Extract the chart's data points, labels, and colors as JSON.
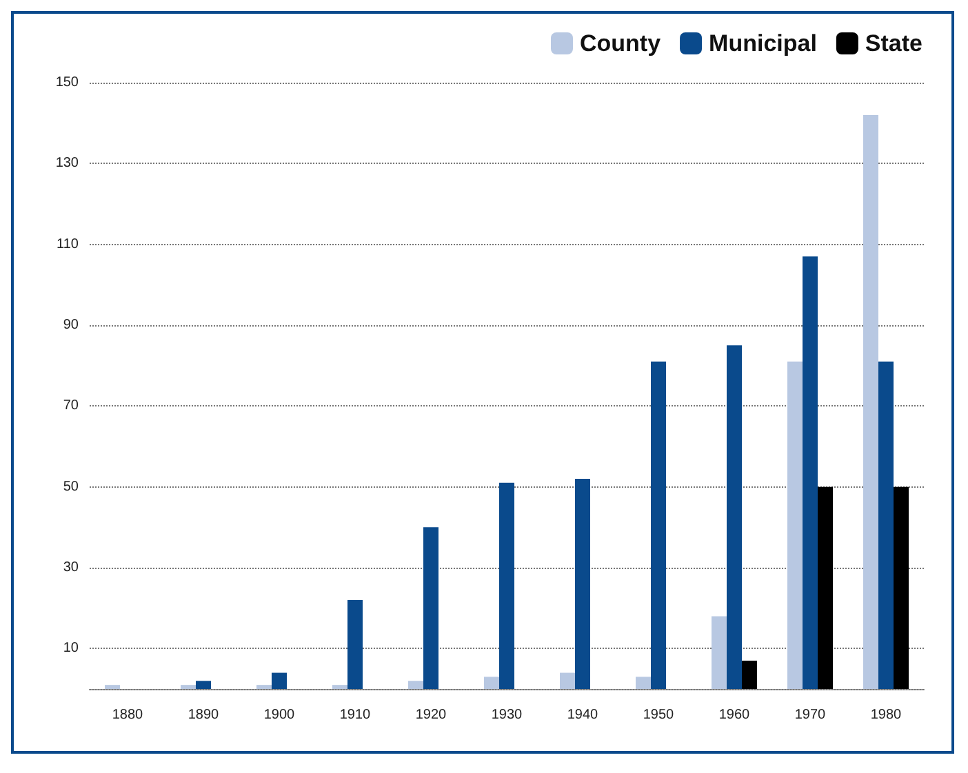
{
  "chart_data": {
    "type": "bar",
    "categories": [
      "1880",
      "1890",
      "1900",
      "1910",
      "1920",
      "1930",
      "1940",
      "1950",
      "1960",
      "1970",
      "1980"
    ],
    "series": [
      {
        "name": "County",
        "color": "#b8c8e2",
        "values": [
          1,
          1,
          1,
          1,
          2,
          3,
          4,
          3,
          18,
          81,
          142
        ]
      },
      {
        "name": "Municipal",
        "color": "#0a4a8c",
        "values": [
          0,
          2,
          4,
          22,
          40,
          51,
          52,
          81,
          85,
          107,
          81
        ]
      },
      {
        "name": "State",
        "color": "#000000",
        "values": [
          0,
          0,
          0,
          0,
          0,
          0,
          0,
          0,
          7,
          50,
          50
        ]
      }
    ],
    "ylim": [
      0,
      150
    ],
    "yticks": [
      10,
      30,
      50,
      70,
      90,
      110,
      130,
      150
    ],
    "grid": "y",
    "legend": "top right"
  }
}
